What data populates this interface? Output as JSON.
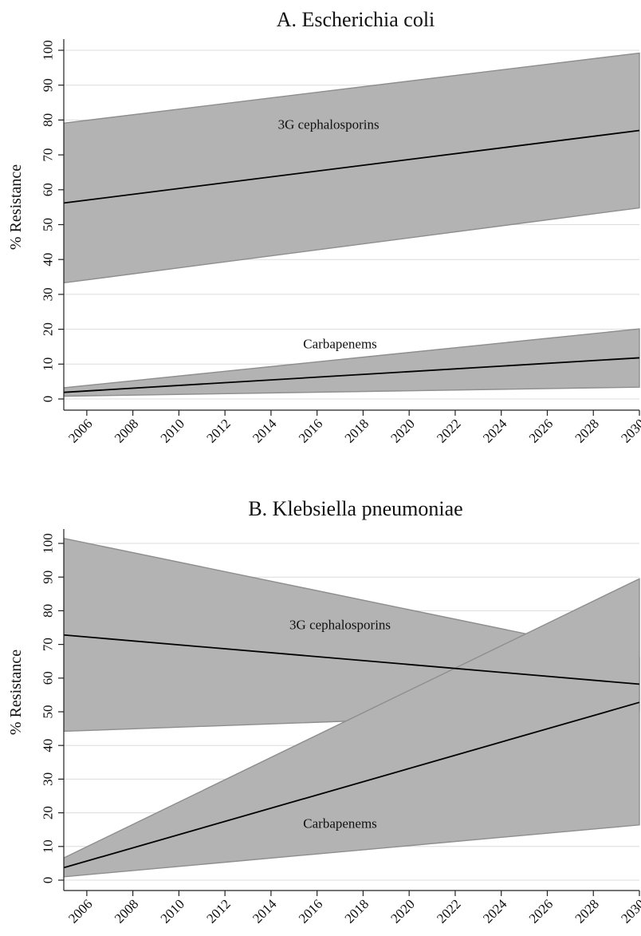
{
  "chart_data": [
    {
      "type": "line",
      "title": "A. Escherichia coli",
      "ylabel": "% Resistance",
      "xlabel": "",
      "xlim": [
        2005,
        2030
      ],
      "ylim": [
        0,
        100
      ],
      "xticks": [
        2006,
        2008,
        2010,
        2012,
        2014,
        2016,
        2018,
        2020,
        2022,
        2024,
        2026,
        2028,
        2030
      ],
      "yticks": [
        0,
        10,
        20,
        30,
        40,
        50,
        60,
        70,
        80,
        90,
        100
      ],
      "grid": true,
      "series": [
        {
          "name": "3G cephalosporins",
          "x": [
            2005,
            2030
          ],
          "fit": [
            56.2,
            77.0
          ],
          "lower": [
            33.3,
            54.8
          ],
          "upper": [
            79.1,
            99.2
          ],
          "label_at": [
            2016.5,
            77.5
          ]
        },
        {
          "name": "Carbapenems",
          "x": [
            2005,
            2030
          ],
          "fit": [
            1.9,
            11.8
          ],
          "lower": [
            0.8,
            3.4
          ],
          "upper": [
            3.2,
            20.1
          ],
          "label_at": [
            2017,
            14.5
          ]
        }
      ]
    },
    {
      "type": "line",
      "title": "B. Klebsiella pneumoniae",
      "ylabel": "% Resistance",
      "xlabel": "",
      "xlim": [
        2005,
        2030
      ],
      "ylim": [
        0,
        100
      ],
      "xticks": [
        2006,
        2008,
        2010,
        2012,
        2014,
        2016,
        2018,
        2020,
        2022,
        2024,
        2026,
        2028,
        2030
      ],
      "yticks": [
        0,
        10,
        20,
        30,
        40,
        50,
        60,
        70,
        80,
        90,
        100
      ],
      "grid": true,
      "series": [
        {
          "name": "3G cephalosporins",
          "x": [
            2005,
            2030
          ],
          "fit": [
            72.8,
            58.2
          ],
          "lower": [
            44.2,
            50.3
          ],
          "upper": [
            101.5,
            66.2
          ],
          "label_at": [
            2017,
            74.5
          ]
        },
        {
          "name": "Carbapenems",
          "x": [
            2005,
            2030
          ],
          "fit": [
            3.7,
            52.8
          ],
          "lower": [
            1.0,
            16.4
          ],
          "upper": [
            6.6,
            89.5
          ],
          "label_at": [
            2017,
            15.5
          ]
        }
      ]
    }
  ]
}
